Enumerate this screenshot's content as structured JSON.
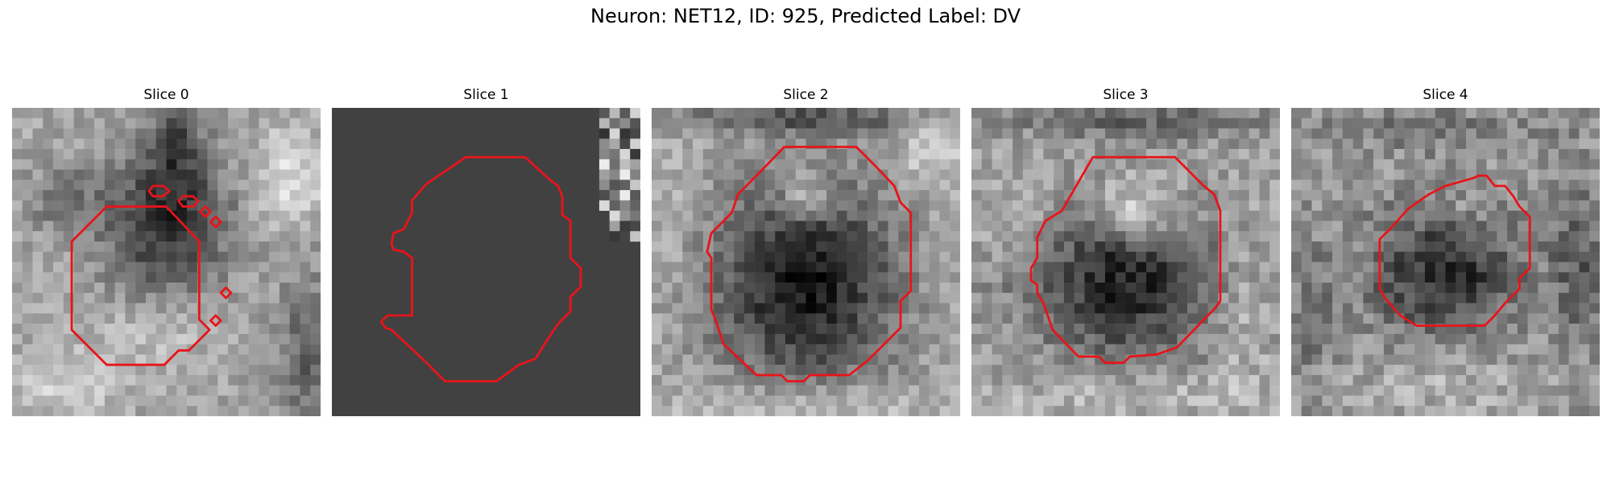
{
  "figure": {
    "title": "Neuron: NET12, ID: 925, Predicted Label: DV"
  },
  "panels": [
    {
      "title": "Slice 0"
    },
    {
      "title": "Slice 1"
    },
    {
      "title": "Slice 2"
    },
    {
      "title": "Slice 3"
    },
    {
      "title": "Slice 4"
    }
  ],
  "colors": {
    "contour": "#e8141a",
    "slice1_background": "#414141"
  }
}
